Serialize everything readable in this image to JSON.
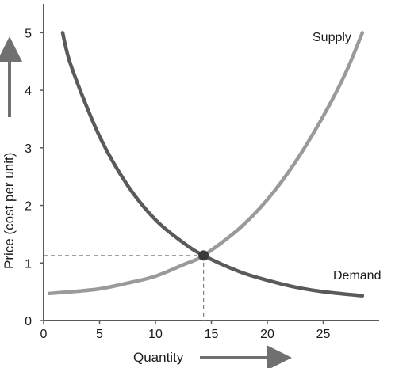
{
  "chart_data": {
    "type": "line",
    "title": "",
    "xlabel": "Quantity",
    "ylabel": "Price (cost per unit)",
    "xlim": [
      0,
      30
    ],
    "ylim": [
      0,
      5.5
    ],
    "x_ticks": [
      0,
      5,
      10,
      15,
      20,
      25
    ],
    "y_ticks": [
      0,
      1,
      2,
      3,
      4,
      5
    ],
    "grid": false,
    "series": [
      {
        "name": "Supply",
        "color": "#9a9a9a",
        "x": [
          0.5,
          2.5,
          5,
          7.5,
          10,
          12.5,
          14.3,
          17.5,
          20,
          22.5,
          25,
          27,
          28.5
        ],
        "y": [
          0.47,
          0.5,
          0.55,
          0.65,
          0.77,
          0.97,
          1.13,
          1.6,
          2.1,
          2.75,
          3.55,
          4.3,
          5.0
        ]
      },
      {
        "name": "Demand",
        "color": "#5a5a5a",
        "x": [
          1.7,
          2.5,
          5,
          7.5,
          10,
          12.5,
          14.3,
          17.5,
          20,
          22.5,
          25,
          28.5
        ],
        "y": [
          5.0,
          4.4,
          3.2,
          2.35,
          1.75,
          1.35,
          1.13,
          0.85,
          0.7,
          0.58,
          0.5,
          0.43
        ]
      }
    ],
    "equilibrium": {
      "x": 14.3,
      "y": 1.13
    },
    "annotations": [
      "Supply",
      "Demand"
    ]
  }
}
